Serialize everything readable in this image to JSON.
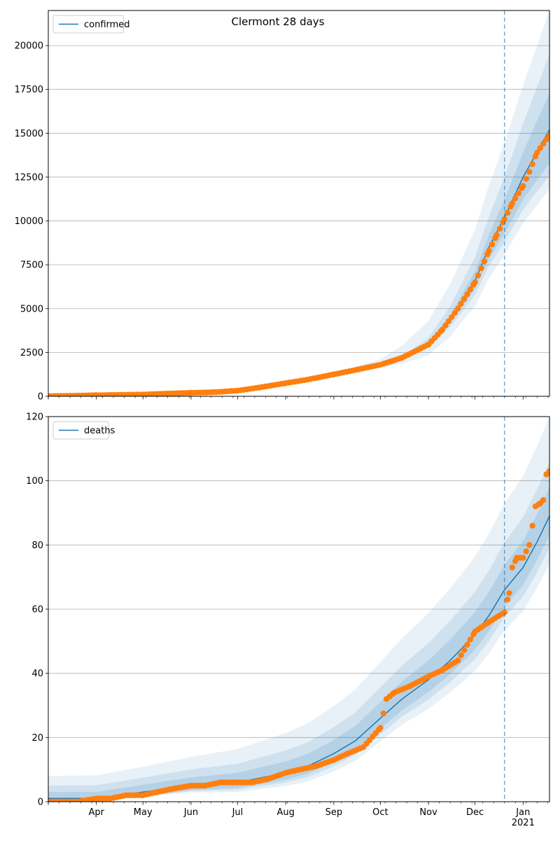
{
  "chart_data": [
    {
      "type": "line",
      "title": "Clermont 28 days",
      "xlabel": "",
      "ylabel": "",
      "x_start": "2020-03-01",
      "x_end": "2021-01-18",
      "ylim": [
        0,
        22000
      ],
      "yticks": [
        0,
        2500,
        5000,
        7500,
        10000,
        12500,
        15000,
        17500,
        20000
      ],
      "grid": "horizontal",
      "legend": {
        "position": "top-left",
        "entries": [
          "confirmed"
        ]
      },
      "forecast_start": "2020-12-20",
      "series": [
        {
          "name": "confirmed",
          "style": "line",
          "color": "#1f77b4",
          "points": [
            [
              "2020-03-01",
              0
            ],
            [
              "2020-04-01",
              50
            ],
            [
              "2020-05-01",
              100
            ],
            [
              "2020-06-01",
              200
            ],
            [
              "2020-07-01",
              300
            ],
            [
              "2020-08-01",
              800
            ],
            [
              "2020-09-01",
              1300
            ],
            [
              "2020-10-01",
              1800
            ],
            [
              "2020-10-15",
              2200
            ],
            [
              "2020-11-01",
              3000
            ],
            [
              "2020-11-15",
              4400
            ],
            [
              "2020-12-01",
              6600
            ],
            [
              "2020-12-10",
              8500
            ],
            [
              "2020-12-20",
              10200
            ],
            [
              "2021-01-01",
              12500
            ],
            [
              "2021-01-18",
              15200
            ]
          ]
        },
        {
          "style": "markers",
          "color": "#ff7f0e",
          "points": [
            [
              "2020-03-01",
              10
            ],
            [
              "2020-03-15",
              30
            ],
            [
              "2020-04-01",
              60
            ],
            [
              "2020-04-15",
              80
            ],
            [
              "2020-05-01",
              100
            ],
            [
              "2020-05-15",
              150
            ],
            [
              "2020-06-01",
              200
            ],
            [
              "2020-06-15",
              230
            ],
            [
              "2020-07-01",
              320
            ],
            [
              "2020-07-15",
              500
            ],
            [
              "2020-08-01",
              750
            ],
            [
              "2020-08-15",
              950
            ],
            [
              "2020-09-01",
              1250
            ],
            [
              "2020-09-15",
              1500
            ],
            [
              "2020-10-01",
              1800
            ],
            [
              "2020-10-15",
              2200
            ],
            [
              "2020-11-01",
              2950
            ],
            [
              "2020-11-10",
              3800
            ],
            [
              "2020-11-20",
              5000
            ],
            [
              "2020-12-01",
              6500
            ],
            [
              "2020-12-10",
              8300
            ],
            [
              "2020-12-15",
              9200
            ],
            [
              "2020-12-20",
              10100
            ],
            [
              "2020-12-25",
              11000
            ],
            [
              "2021-01-01",
              12000
            ],
            [
              "2021-01-05",
              12800
            ],
            [
              "2021-01-10",
              13900
            ],
            [
              "2021-01-18",
              14900
            ]
          ]
        }
      ],
      "bands": [
        {
          "start": "2020-09-01",
          "end": "2021-01-18",
          "lower_end": 11800,
          "upper_end": 22000,
          "opacity": 0.1
        },
        {
          "start": "2020-10-01",
          "end": "2021-01-18",
          "lower_end": 12600,
          "upper_end": 19500,
          "opacity": 0.12
        },
        {
          "start": "2020-10-15",
          "end": "2021-01-18",
          "lower_end": 13300,
          "upper_end": 17300,
          "opacity": 0.15
        }
      ]
    },
    {
      "type": "line",
      "title": "",
      "xlabel": "",
      "ylabel": "",
      "x_start": "2020-03-01",
      "x_end": "2021-01-18",
      "ylim": [
        0,
        120
      ],
      "yticks": [
        0,
        20,
        40,
        60,
        80,
        100,
        120
      ],
      "grid": "horizontal",
      "legend": {
        "position": "top-left",
        "entries": [
          "deaths"
        ]
      },
      "forecast_start": "2020-12-20",
      "xtick_labels": [
        "Apr",
        "May",
        "Jun",
        "Jul",
        "Aug",
        "Sep",
        "Oct",
        "Nov",
        "Dec",
        "Jan\n2021"
      ],
      "xtick_dates": [
        "2020-04-01",
        "2020-05-01",
        "2020-06-01",
        "2020-07-01",
        "2020-08-01",
        "2020-09-01",
        "2020-10-01",
        "2020-11-01",
        "2020-12-01",
        "2021-01-01"
      ],
      "series": [
        {
          "name": "deaths",
          "style": "line",
          "color": "#1f77b4",
          "points": [
            [
              "2020-03-01",
              1
            ],
            [
              "2020-04-01",
              1
            ],
            [
              "2020-05-01",
              3
            ],
            [
              "2020-06-01",
              5
            ],
            [
              "2020-07-01",
              6
            ],
            [
              "2020-08-01",
              9
            ],
            [
              "2020-08-15",
              11
            ],
            [
              "2020-09-01",
              15
            ],
            [
              "2020-09-15",
              19
            ],
            [
              "2020-10-01",
              26
            ],
            [
              "2020-10-15",
              32
            ],
            [
              "2020-11-01",
              38
            ],
            [
              "2020-11-15",
              44
            ],
            [
              "2020-12-01",
              52
            ],
            [
              "2020-12-10",
              58
            ],
            [
              "2020-12-20",
              66
            ],
            [
              "2021-01-01",
              73
            ],
            [
              "2021-01-10",
              81
            ],
            [
              "2021-01-18",
              89
            ]
          ]
        },
        {
          "style": "markers",
          "color": "#ff7f0e",
          "points": [
            [
              "2020-03-01",
              0
            ],
            [
              "2020-03-10",
              0
            ],
            [
              "2020-03-20",
              0
            ],
            [
              "2020-04-01",
              1
            ],
            [
              "2020-04-10",
              1
            ],
            [
              "2020-04-20",
              2
            ],
            [
              "2020-05-01",
              2
            ],
            [
              "2020-05-10",
              3
            ],
            [
              "2020-05-20",
              4
            ],
            [
              "2020-06-01",
              5
            ],
            [
              "2020-06-10",
              5
            ],
            [
              "2020-06-20",
              6
            ],
            [
              "2020-07-01",
              6
            ],
            [
              "2020-07-10",
              6
            ],
            [
              "2020-07-20",
              7
            ],
            [
              "2020-08-01",
              9
            ],
            [
              "2020-08-10",
              10
            ],
            [
              "2020-08-20",
              11
            ],
            [
              "2020-09-01",
              13
            ],
            [
              "2020-09-10",
              15
            ],
            [
              "2020-09-20",
              17
            ],
            [
              "2020-10-01",
              23
            ],
            [
              "2020-10-05",
              32
            ],
            [
              "2020-10-10",
              34
            ],
            [
              "2020-10-20",
              36
            ],
            [
              "2020-11-01",
              39
            ],
            [
              "2020-11-10",
              41
            ],
            [
              "2020-11-20",
              44
            ],
            [
              "2020-12-01",
              53
            ],
            [
              "2020-12-10",
              56
            ],
            [
              "2020-12-20",
              59
            ],
            [
              "2020-12-23",
              65
            ],
            [
              "2020-12-25",
              73
            ],
            [
              "2020-12-28",
              76
            ],
            [
              "2021-01-01",
              76
            ],
            [
              "2021-01-05",
              80
            ],
            [
              "2021-01-07",
              86
            ],
            [
              "2021-01-09",
              92
            ],
            [
              "2021-01-12",
              93
            ],
            [
              "2021-01-14",
              94
            ],
            [
              "2021-01-16",
              102
            ],
            [
              "2021-01-18",
              103
            ]
          ]
        }
      ],
      "bands": [
        {
          "start": "2020-03-01",
          "end": "2021-01-18",
          "lower_start": 0,
          "upper_start": 8,
          "lower_end": 74,
          "upper_end": 120,
          "opacity": 0.1
        },
        {
          "start": "2020-03-01",
          "end": "2021-01-18",
          "lower_start": 0,
          "upper_start": 5,
          "lower_end": 79,
          "upper_end": 106,
          "opacity": 0.12
        },
        {
          "start": "2020-03-01",
          "end": "2021-01-18",
          "lower_start": 0,
          "upper_start": 3,
          "lower_end": 83,
          "upper_end": 98,
          "opacity": 0.15
        }
      ]
    }
  ]
}
